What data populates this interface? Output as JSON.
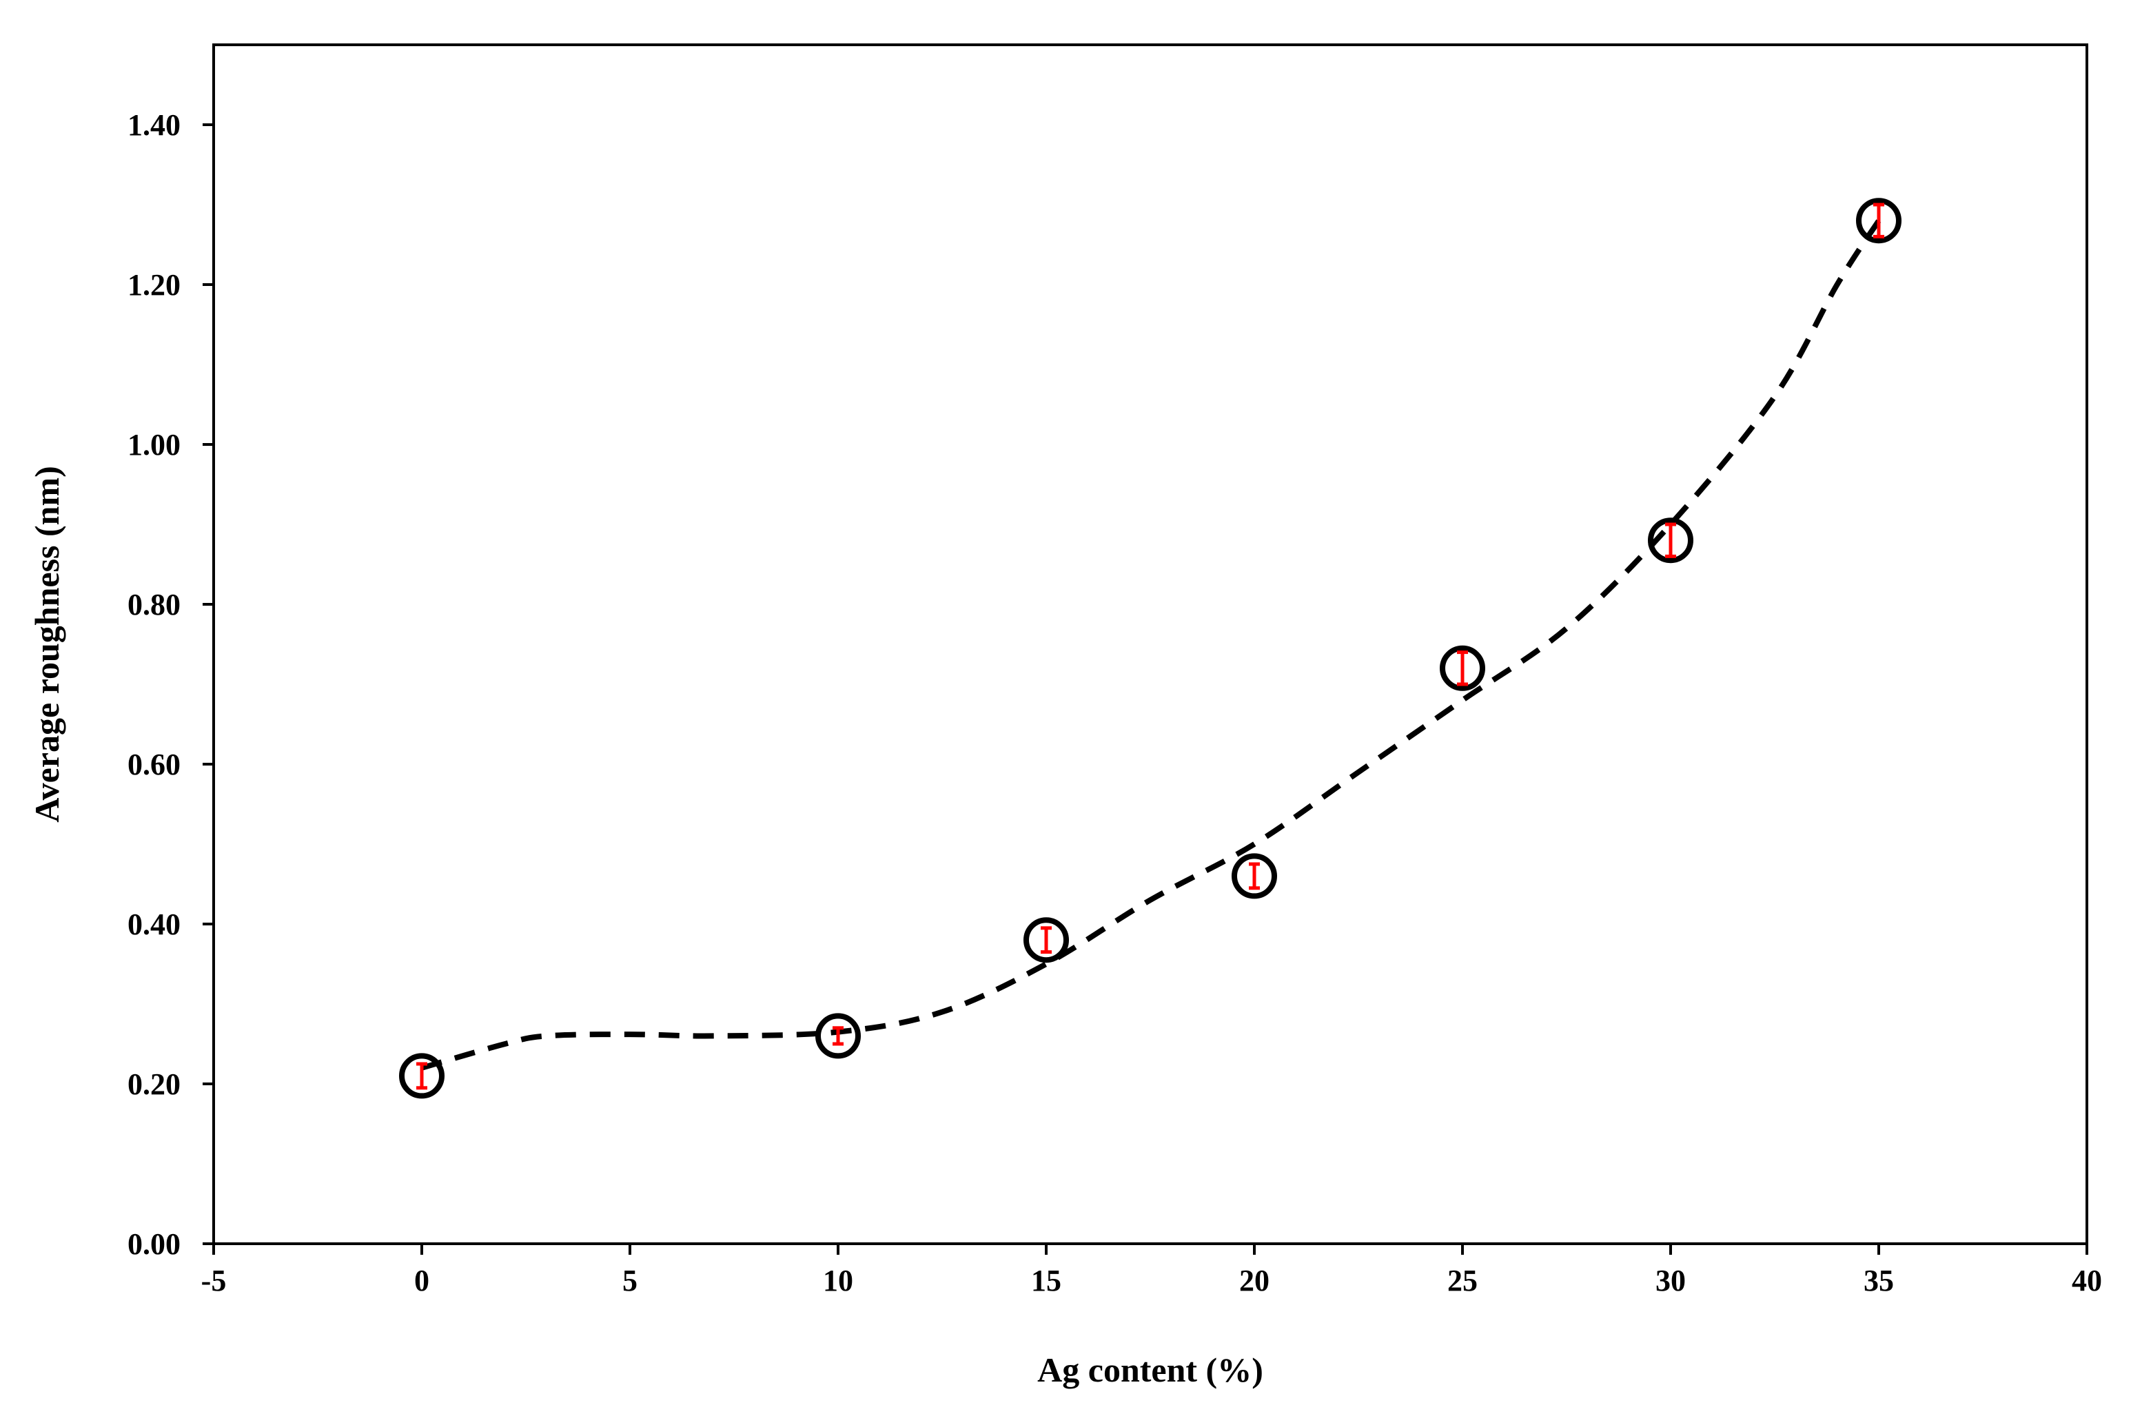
{
  "chart_data": {
    "type": "scatter",
    "title": "",
    "xlabel": "Ag content (%)",
    "ylabel": "Average  roughness (nm)",
    "xlim": [
      -5,
      40
    ],
    "ylim": [
      0,
      1.5
    ],
    "x_ticks": [
      -5,
      0,
      5,
      10,
      15,
      20,
      25,
      30,
      35,
      40
    ],
    "x_tick_labels": [
      "-5",
      "0",
      "5",
      "10",
      "15",
      "20",
      "25",
      "30",
      "35",
      "40"
    ],
    "y_ticks": [
      0,
      0.2,
      0.4,
      0.6,
      0.8,
      1.0,
      1.2,
      1.4
    ],
    "y_tick_labels": [
      "0.00",
      "0.20",
      "0.40",
      "0.60",
      "0.80",
      "1.00",
      "1.20",
      "1.40"
    ],
    "grid": false,
    "legend": "none",
    "series": [
      {
        "name": "Average roughness",
        "marker": "open-circle",
        "x": [
          0,
          10,
          15,
          20,
          25,
          30,
          35
        ],
        "y": [
          0.21,
          0.26,
          0.38,
          0.46,
          0.72,
          0.88,
          1.28
        ],
        "error": [
          0.015,
          0.01,
          0.015,
          0.015,
          0.02,
          0.02,
          0.02
        ]
      }
    ],
    "trend_line": {
      "style": "dashed",
      "x": [
        0,
        2,
        3,
        5,
        7,
        10,
        12.5,
        15,
        17.5,
        20,
        22.5,
        25,
        27.5,
        30,
        32.5,
        34,
        35
      ],
      "y": [
        0.22,
        0.25,
        0.26,
        0.262,
        0.26,
        0.265,
        0.29,
        0.35,
        0.43,
        0.5,
        0.59,
        0.68,
        0.77,
        0.9,
        1.06,
        1.2,
        1.28
      ]
    },
    "colors": {
      "axis": "#000000",
      "marker_edge": "#000000",
      "error_bar": "#ff0000",
      "trend_line": "#000000"
    }
  }
}
